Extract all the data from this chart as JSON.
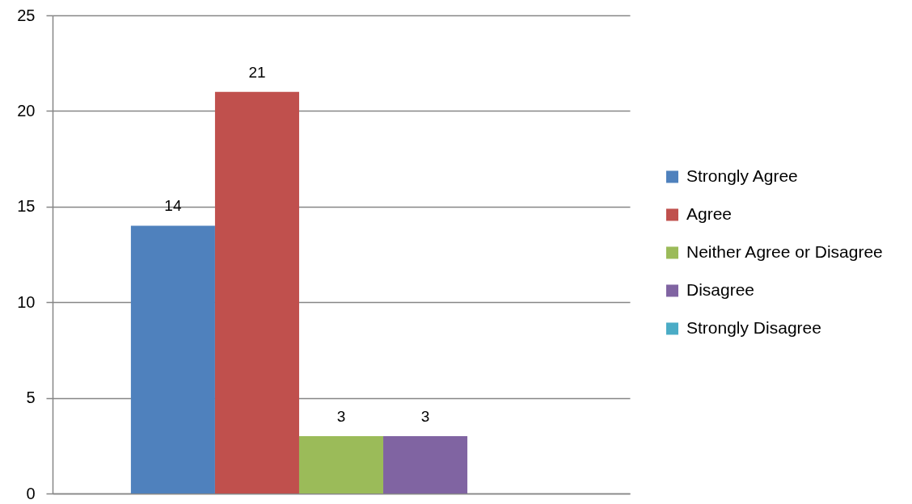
{
  "chart_data": {
    "type": "bar",
    "categories": [
      null
    ],
    "series": [
      {
        "name": "Strongly Agree",
        "color": "#4f81bd",
        "values": [
          14
        ]
      },
      {
        "name": "Agree",
        "color": "#c0504d",
        "values": [
          21
        ]
      },
      {
        "name": "Neither Agree or Disagree",
        "color": "#9bbb59",
        "values": [
          3
        ]
      },
      {
        "name": "Disagree",
        "color": "#8064a2",
        "values": [
          3
        ]
      },
      {
        "name": "Strongly Disagree",
        "color": "#4bacc6",
        "values": [
          null
        ]
      }
    ],
    "ylim": [
      0,
      25
    ],
    "yticks": [
      0,
      5,
      10,
      15,
      20,
      25
    ],
    "grid": "y",
    "legend": "right",
    "data_labels": true,
    "tick_labels": "y"
  }
}
